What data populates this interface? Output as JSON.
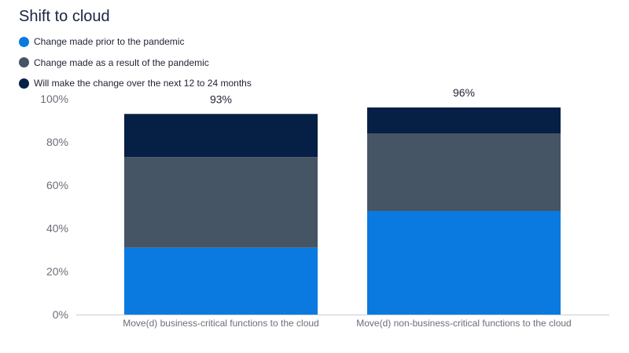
{
  "chart_data": {
    "type": "bar",
    "stacked": true,
    "title": "Shift to cloud",
    "categories": [
      "Move(d) business-critical functions to the cloud",
      "Move(d) non-business-critical functions to the cloud"
    ],
    "series": [
      {
        "name": "Change made prior to the pandemic",
        "color": "#0a7ae0",
        "values": [
          31,
          48
        ]
      },
      {
        "name": "Change made as a result of the pandemic",
        "color": "#465565",
        "values": [
          42,
          36
        ]
      },
      {
        "name": "Will make the change over the next 12 to 24 months",
        "color": "#061f45",
        "values": [
          20,
          12
        ]
      }
    ],
    "totals": [
      "93%",
      "96%"
    ],
    "y_ticks": [
      {
        "value": 0,
        "label": "0%"
      },
      {
        "value": 20,
        "label": "20%"
      },
      {
        "value": 40,
        "label": "40%"
      },
      {
        "value": 60,
        "label": "60%"
      },
      {
        "value": 80,
        "label": "80%"
      },
      {
        "value": 100,
        "label": "100%"
      }
    ],
    "ylim": [
      0,
      100
    ],
    "grid": false,
    "legend_position": "top-left"
  }
}
